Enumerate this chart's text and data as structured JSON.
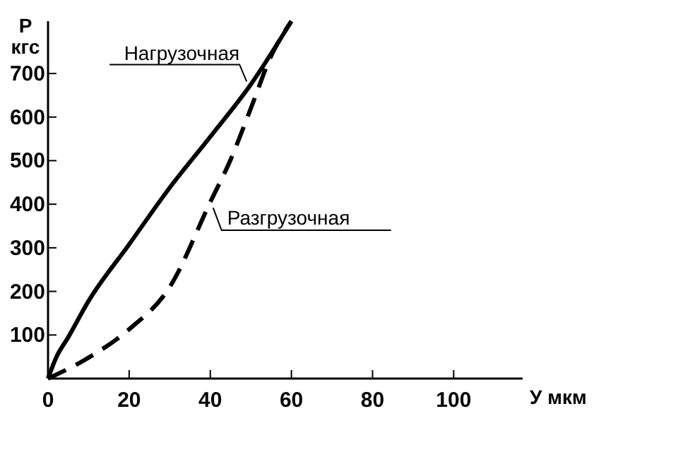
{
  "chart_data": {
    "type": "line",
    "xlabel": "У мкм",
    "ylabel": "P кгс",
    "xlim": [
      0,
      117
    ],
    "ylim": [
      0,
      820
    ],
    "xticks": [
      0,
      20,
      40,
      60,
      80,
      100
    ],
    "yticks": [
      100,
      200,
      300,
      400,
      500,
      600,
      700
    ],
    "grid": false,
    "series": [
      {
        "name": "Нагрузочная",
        "color": "#000000",
        "line_style": "solid",
        "x": [
          0,
          2,
          5,
          10,
          20,
          30,
          40,
          50,
          60
        ],
        "values": [
          0,
          48,
          95,
          178,
          308,
          438,
          555,
          675,
          820
        ]
      },
      {
        "name": "Разгрузочная",
        "color": "#000000",
        "line_style": "dashed",
        "x": [
          0,
          10,
          20,
          30,
          40,
          45,
          50,
          55,
          60
        ],
        "values": [
          0,
          48,
          113,
          210,
          405,
          502,
          620,
          740,
          820
        ]
      }
    ]
  }
}
